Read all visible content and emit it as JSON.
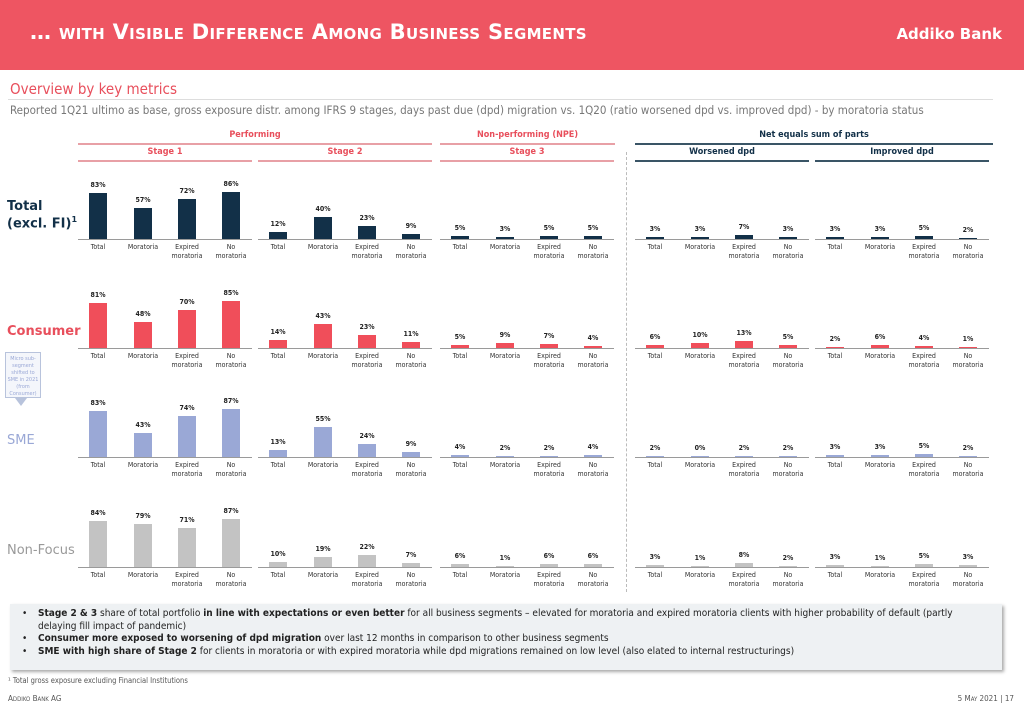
{
  "header": {
    "title": "… with Visible Difference Among Business Segments",
    "logo": "Addiko Bank"
  },
  "subtitle": "Overview by key metrics",
  "description": "Reported 1Q21 ultimo as base, gross exposure distr. among IFRS 9 stages, days past due (dpd) migration vs. 1Q20 (ratio worsened dpd vs. improved dpd) - by moratoria status",
  "groups": {
    "performing": "Performing",
    "npe": "Non-performing (NPE)",
    "net": "Net equals sum of parts"
  },
  "panels": [
    "Stage 1",
    "Stage 2",
    "Stage 3",
    "Worsened dpd",
    "Improved dpd"
  ],
  "callout": "Micro sub-segment shifted to SME in 2021 (from Consumer)",
  "colors": {
    "accent": "#ee5562",
    "total": "#123048",
    "consumer": "#f04e5a",
    "sme": "#9aa8d6",
    "nonfocus": "#c3c3c3"
  },
  "chart_data": {
    "type": "bar",
    "categories": [
      [
        "Total"
      ],
      [
        "Moratoria"
      ],
      [
        "Expired",
        "moratoria"
      ],
      [
        "No",
        "moratoria"
      ]
    ],
    "rows": [
      {
        "label": "Total",
        "label2": "(excl. FI)",
        "sup": "1",
        "color": "#123048",
        "labelColor": "#123048",
        "values": [
          [
            "83%",
            "57%",
            "72%",
            "86%"
          ],
          [
            "12%",
            "40%",
            "23%",
            "9%"
          ],
          [
            "5%",
            "3%",
            "5%",
            "5%"
          ],
          [
            "3%",
            "3%",
            "7%",
            "3%"
          ],
          [
            "3%",
            "3%",
            "5%",
            "2%"
          ]
        ]
      },
      {
        "label": "Consumer",
        "color": "#f04e5a",
        "labelColor": "#e84f5c",
        "values": [
          [
            "81%",
            "48%",
            "70%",
            "85%"
          ],
          [
            "14%",
            "43%",
            "23%",
            "11%"
          ],
          [
            "5%",
            "9%",
            "7%",
            "4%"
          ],
          [
            "6%",
            "10%",
            "13%",
            "5%"
          ],
          [
            "2%",
            "6%",
            "4%",
            "1%"
          ]
        ]
      },
      {
        "label": "SME",
        "color": "#9aa8d6",
        "labelColor": "#9aa8d6",
        "values": [
          [
            "83%",
            "43%",
            "74%",
            "87%"
          ],
          [
            "13%",
            "55%",
            "24%",
            "9%"
          ],
          [
            "4%",
            "2%",
            "2%",
            "4%"
          ],
          [
            "2%",
            "0%",
            "2%",
            "2%"
          ],
          [
            "3%",
            "3%",
            "5%",
            "2%"
          ]
        ]
      },
      {
        "label": "Non-Focus",
        "color": "#c3c3c3",
        "labelColor": "#999999",
        "values": [
          [
            "84%",
            "79%",
            "71%",
            "87%"
          ],
          [
            "10%",
            "19%",
            "22%",
            "7%"
          ],
          [
            "6%",
            "1%",
            "6%",
            "6%"
          ],
          [
            "3%",
            "1%",
            "8%",
            "2%"
          ],
          [
            "3%",
            "1%",
            "5%",
            "3%"
          ]
        ]
      }
    ]
  },
  "notes": [
    {
      "bold": "Stage 2 & 3",
      "text1": " share of total portfolio ",
      "bold2": "in line with expectations or even better",
      "text2": " for all business segments – elevated for moratoria and expired moratoria clients with higher probability of default (partly delaying fill impact of pandemic)"
    },
    {
      "bold": "Consumer more exposed to worsening of dpd migration",
      "text1": " over last 12 months in comparison to other business segments",
      "bold2": "",
      "text2": ""
    },
    {
      "bold": "SME with high share of Stage 2",
      "text1": " for clients in moratoria or with expired moratoria while dpd migrations remained on low level (also elated to internal restructurings)",
      "bold2": "",
      "text2": ""
    }
  ],
  "footnote": "¹ Total gross exposure excluding Financial Institutions",
  "footer": {
    "company": "Addiko Bank AG",
    "date_page": "5 May 2021 | 17"
  }
}
